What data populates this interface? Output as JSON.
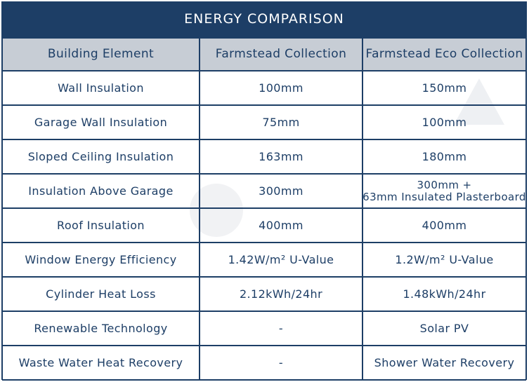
{
  "title": "ENERGY COMPARISON",
  "table": {
    "header": [
      "Building Element",
      "Farmstead Collection",
      "Farmstead Eco Collection"
    ],
    "rows": [
      [
        "Wall Insulation",
        "100mm",
        "150mm"
      ],
      [
        "Garage Wall Insulation",
        "75mm",
        "100mm"
      ],
      [
        "Sloped Ceiling Insulation",
        "163mm",
        "180mm"
      ],
      [
        "Insulation Above Garage",
        "300mm",
        "300mm +\n63mm Insulated Plasterboard"
      ],
      [
        "Roof Insulation",
        "400mm",
        "400mm"
      ],
      [
        "Window Energy Efficiency",
        "1.42W/m² U-Value",
        "1.2W/m² U-Value"
      ],
      [
        "Cylinder Heat Loss",
        "2.12kWh/24hr",
        "1.48kWh/24hr"
      ],
      [
        "Renewable Technology",
        "-",
        "Solar PV"
      ],
      [
        "Waste Water Heat Recovery",
        "-",
        "Shower Water Recovery"
      ]
    ]
  }
}
